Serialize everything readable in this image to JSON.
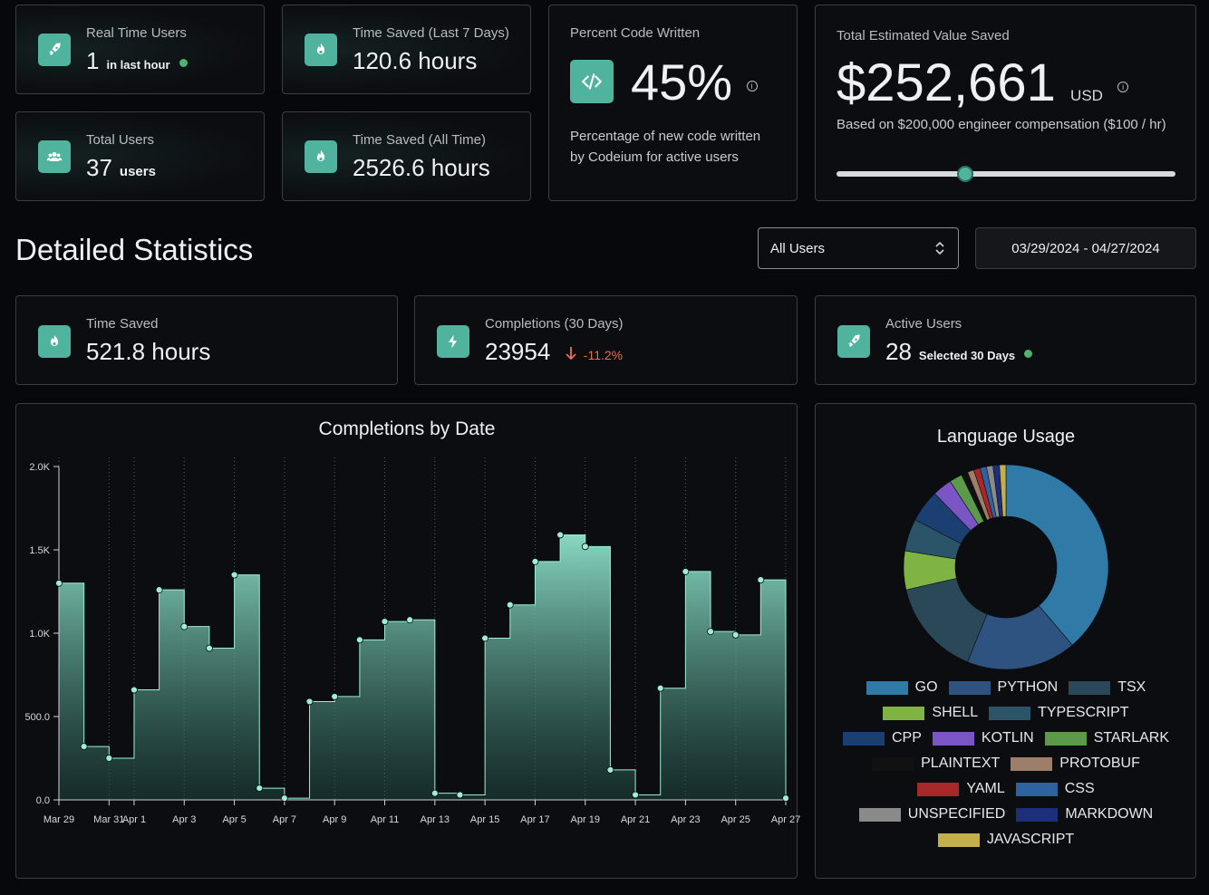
{
  "top_cards": {
    "real_time_users": {
      "label": "Real Time Users",
      "value": "1",
      "suffix": "in last hour",
      "icon": "rocket-icon"
    },
    "time_saved_7d": {
      "label": "Time Saved (Last 7 Days)",
      "value": "120.6 hours",
      "icon": "fire-icon"
    },
    "total_users": {
      "label": "Total Users",
      "value": "37",
      "suffix": "users",
      "icon": "users-icon"
    },
    "time_saved_all": {
      "label": "Time Saved (All Time)",
      "value": "2526.6 hours",
      "icon": "fire-icon"
    },
    "percent_code": {
      "label": "Percent Code Written",
      "value": "45%",
      "info": "i",
      "description": "Percentage of new code written by Codeium for active users",
      "icon": "code-icon"
    },
    "value_saved": {
      "label": "Total Estimated Value Saved",
      "value": "$252,661",
      "unit": "USD",
      "info": "i",
      "description": "Based on $200,000 engineer compensation ($100 / hr)",
      "slider_fraction": 0.38
    }
  },
  "section": {
    "title": "Detailed Statistics"
  },
  "filters": {
    "user_select": "All Users",
    "date_range": "03/29/2024 - 04/27/2024"
  },
  "detail_cards": {
    "time_saved": {
      "label": "Time Saved",
      "value": "521.8 hours",
      "icon": "fire-icon"
    },
    "completions": {
      "label": "Completions (30 Days)",
      "value": "23954",
      "change": "-11.2%",
      "change_color": "#e8704e",
      "icon": "bolt-icon"
    },
    "active_users": {
      "label": "Active Users",
      "value": "28",
      "suffix": "Selected 30 Days",
      "icon": "rocket-icon"
    }
  },
  "colors": {
    "accent": "#4fb39d",
    "status_green": "#4fb36f",
    "negative": "#e8704e"
  },
  "chart_data": [
    {
      "type": "area",
      "title": "Completions by Date",
      "ylim": [
        0,
        2000
      ],
      "y_ticks": [
        "0.0",
        "500.0",
        "1.0K",
        "1.5K",
        "2.0K"
      ],
      "x_tick_labels": [
        "Mar 29",
        "Mar 31",
        "Apr 1",
        "Apr 3",
        "Apr 5",
        "Apr 7",
        "Apr 9",
        "Apr 11",
        "Apr 13",
        "Apr 15",
        "Apr 17",
        "Apr 19",
        "Apr 21",
        "Apr 23",
        "Apr 25",
        "Apr 27"
      ],
      "x": [
        "Mar 29",
        "Mar 30",
        "Mar 31",
        "Apr 1",
        "Apr 2",
        "Apr 3",
        "Apr 4",
        "Apr 5",
        "Apr 6",
        "Apr 7",
        "Apr 8",
        "Apr 9",
        "Apr 10",
        "Apr 11",
        "Apr 12",
        "Apr 13",
        "Apr 14",
        "Apr 15",
        "Apr 16",
        "Apr 17",
        "Apr 18",
        "Apr 19",
        "Apr 20",
        "Apr 21",
        "Apr 22",
        "Apr 23",
        "Apr 24",
        "Apr 25",
        "Apr 26",
        "Apr 27"
      ],
      "values": [
        1300,
        320,
        250,
        660,
        1260,
        1040,
        910,
        1350,
        70,
        10,
        590,
        620,
        960,
        1070,
        1080,
        40,
        30,
        970,
        1170,
        1430,
        1590,
        1520,
        180,
        30,
        670,
        1370,
        1010,
        990,
        1320,
        10
      ],
      "grid": "vertical-dotted"
    },
    {
      "type": "pie",
      "title": "Language Usage",
      "categories": [
        "GO",
        "PYTHON",
        "TSX",
        "SHELL",
        "TYPESCRIPT",
        "CPP",
        "KOTLIN",
        "STARLARK",
        "PLAINTEXT",
        "PROTOBUF",
        "YAML",
        "CSS",
        "UNSPECIFIED",
        "MARKDOWN",
        "JAVASCRIPT"
      ],
      "values": [
        38,
        17,
        15,
        6,
        5,
        5,
        3,
        2,
        1,
        1,
        1,
        1,
        1,
        1,
        1
      ],
      "colors": [
        "#2f7aa6",
        "#2e5380",
        "#2a4858",
        "#7fb344",
        "#2c5468",
        "#1c3f72",
        "#7b55c4",
        "#5a9a4a",
        "#111111",
        "#9c7e6a",
        "#a8282a",
        "#2f62a0",
        "#8a8a8a",
        "#1e2f7a",
        "#c4b04a"
      ],
      "legend_position": "bottom"
    }
  ]
}
